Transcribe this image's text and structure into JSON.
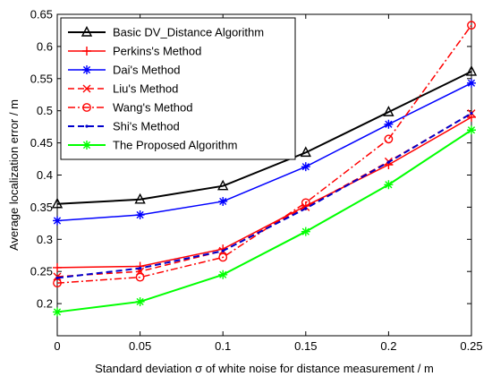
{
  "chart_data": {
    "type": "line",
    "title": "",
    "xlabel": "Standard deviation σ of white noise for distance measurement / m",
    "ylabel": "Average localization error / m",
    "xlim": [
      0,
      0.25
    ],
    "ylim": [
      0.15,
      0.65
    ],
    "grid": false,
    "legend_position": "top-left",
    "x": [
      0,
      0.05,
      0.1,
      0.15,
      0.2,
      0.25
    ],
    "x_tick_labels": [
      "0",
      "0.05",
      "0.1",
      "0.15",
      "0.2",
      "0.25"
    ],
    "y_ticks": [
      0.2,
      0.25,
      0.3,
      0.35,
      0.4,
      0.45,
      0.5,
      0.55,
      0.6,
      0.65
    ],
    "y_tick_labels": [
      "0.2",
      "0.25",
      "0.3",
      "0.35",
      "0.4",
      "0.45",
      "0.5",
      "0.55",
      "0.6",
      "0.65"
    ],
    "series": [
      {
        "name": "Basic DV_Distance Algorithm",
        "values": [
          0.355,
          0.362,
          0.383,
          0.435,
          0.498,
          0.561
        ],
        "color": "#000000",
        "marker": "triangle",
        "dash": "solid",
        "width": 2
      },
      {
        "name": "Perkins's Method",
        "values": [
          0.256,
          0.258,
          0.285,
          0.352,
          0.416,
          0.49
        ],
        "color": "#ff0000",
        "marker": "plus",
        "dash": "solid",
        "width": 1.5
      },
      {
        "name": "Dai's Method",
        "values": [
          0.329,
          0.338,
          0.359,
          0.413,
          0.479,
          0.543
        ],
        "color": "#0000ff",
        "marker": "asterisk",
        "dash": "solid",
        "width": 1.5
      },
      {
        "name": "Liu's Method",
        "values": [
          0.242,
          0.25,
          0.282,
          0.35,
          0.421,
          0.496
        ],
        "color": "#ff0000",
        "marker": "cross",
        "dash": "dashed",
        "width": 1.5
      },
      {
        "name": "Wang's Method",
        "values": [
          0.232,
          0.241,
          0.272,
          0.357,
          0.456,
          0.633
        ],
        "color": "#ff0000",
        "marker": "circle",
        "dash": "dashdot",
        "width": 1.5
      },
      {
        "name": "Shi's Method",
        "values": [
          0.24,
          0.255,
          0.282,
          0.348,
          0.42,
          0.496
        ],
        "color": "#0000cc",
        "marker": "point",
        "dash": "dashed",
        "width": 2
      },
      {
        "name": "The Proposed Algorithm",
        "values": [
          0.187,
          0.203,
          0.245,
          0.312,
          0.385,
          0.47
        ],
        "color": "#00ff00",
        "marker": "asterisk",
        "dash": "solid",
        "width": 2
      }
    ]
  }
}
